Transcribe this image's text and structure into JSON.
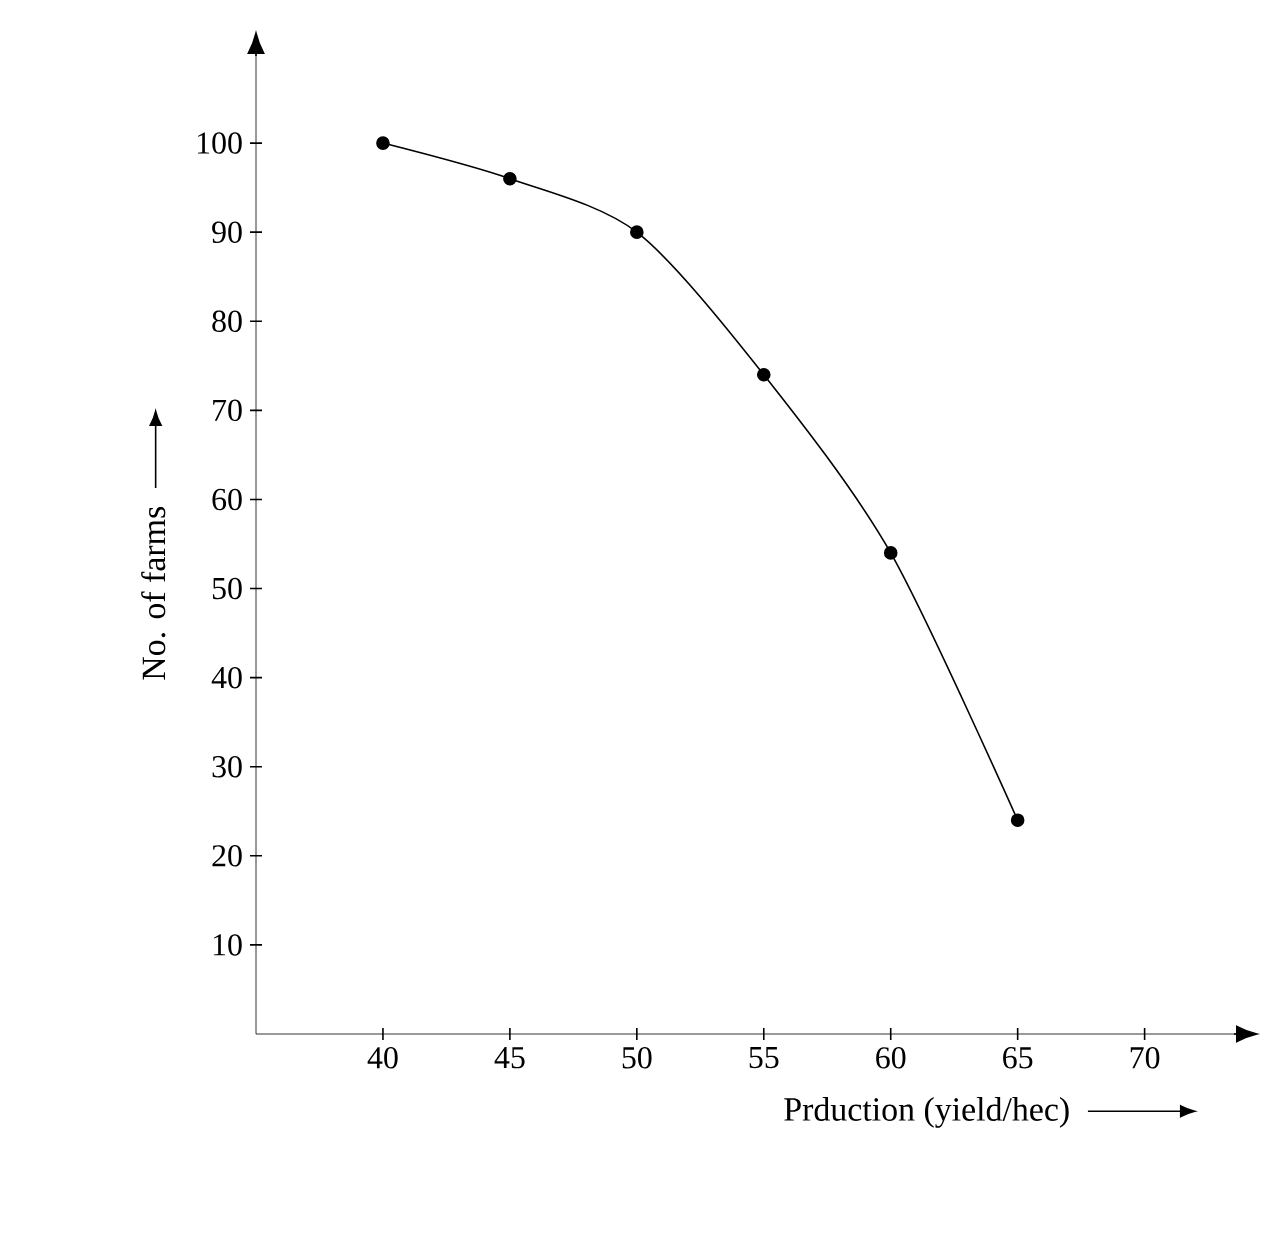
{
  "chart_data": {
    "type": "line",
    "xlabel": "Prduction (yield/hec)",
    "ylabel": "No. of farms",
    "x": [
      40,
      45,
      50,
      55,
      60,
      65
    ],
    "series": [
      {
        "color": "#000000",
        "values": [
          100,
          96,
          90,
          74,
          54,
          24
        ]
      }
    ],
    "xlim": [
      35,
      73.6
    ],
    "ylim": [
      0,
      110
    ],
    "xticks": [
      40,
      45,
      50,
      55,
      60,
      65,
      70
    ],
    "yticks": [
      10,
      20,
      30,
      40,
      50,
      60,
      70,
      80,
      90,
      100
    ],
    "marker": "circle",
    "line_style": "solid",
    "grid": false
  }
}
